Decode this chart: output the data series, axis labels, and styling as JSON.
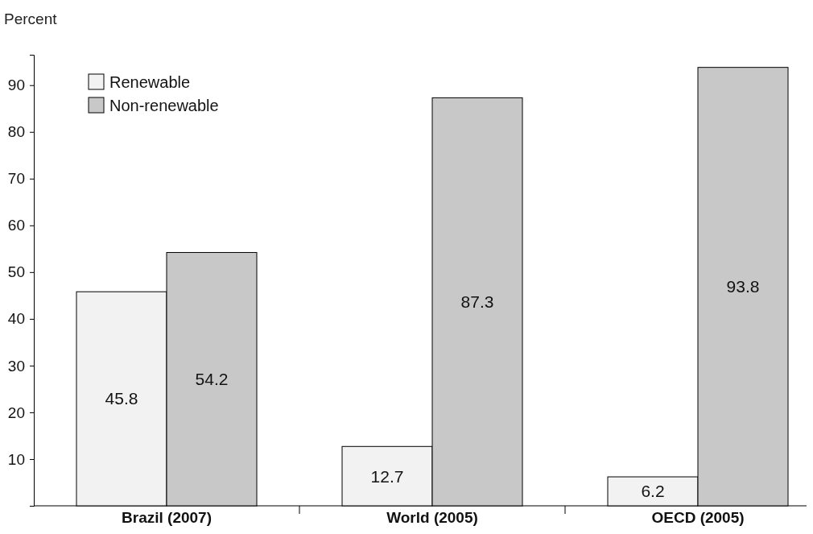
{
  "chart_data": {
    "type": "bar",
    "ylabel": "Percent",
    "categories": [
      "Brazil (2007)",
      "World (2005)",
      "OECD (2005)"
    ],
    "series": [
      {
        "name": "Renewable",
        "color": "#f2f2f2",
        "values": [
          45.8,
          12.7,
          6.2
        ]
      },
      {
        "name": "Non-renewable",
        "color": "#c8c8c8",
        "values": [
          54.2,
          87.3,
          93.8
        ]
      }
    ],
    "ylim": [
      0,
      96.5
    ],
    "yticks": [
      10,
      20,
      30,
      40,
      50,
      60,
      70,
      80,
      90
    ],
    "grid": false,
    "legend": "top left",
    "data_labels": true
  }
}
